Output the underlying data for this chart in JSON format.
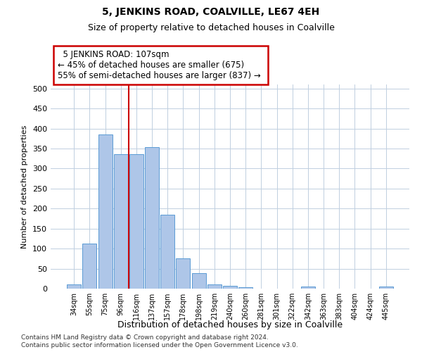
{
  "title": "5, JENKINS ROAD, COALVILLE, LE67 4EH",
  "subtitle": "Size of property relative to detached houses in Coalville",
  "xlabel": "Distribution of detached houses by size in Coalville",
  "ylabel": "Number of detached properties",
  "bar_labels": [
    "34sqm",
    "55sqm",
    "75sqm",
    "96sqm",
    "116sqm",
    "137sqm",
    "157sqm",
    "178sqm",
    "198sqm",
    "219sqm",
    "240sqm",
    "260sqm",
    "281sqm",
    "301sqm",
    "322sqm",
    "342sqm",
    "363sqm",
    "383sqm",
    "404sqm",
    "424sqm",
    "445sqm"
  ],
  "bar_values": [
    10,
    113,
    385,
    336,
    336,
    353,
    184,
    76,
    38,
    11,
    7,
    4,
    0,
    0,
    0,
    5,
    0,
    0,
    0,
    0,
    5
  ],
  "bar_color": "#aec6e8",
  "bar_edge_color": "#5b9bd5",
  "ylim": [
    0,
    510
  ],
  "yticks": [
    0,
    50,
    100,
    150,
    200,
    250,
    300,
    350,
    400,
    450,
    500
  ],
  "vline_x": 4.0,
  "vline_color": "#cc0000",
  "annotation_title": "5 JENKINS ROAD: 107sqm",
  "annotation_line1": "← 45% of detached houses are smaller (675)",
  "annotation_line2": "55% of semi-detached houses are larger (837) →",
  "annotation_box_color": "#ffffff",
  "annotation_box_edge": "#cc0000",
  "footer1": "Contains HM Land Registry data © Crown copyright and database right 2024.",
  "footer2": "Contains public sector information licensed under the Open Government Licence v3.0.",
  "bg_color": "#ffffff",
  "grid_color": "#c0cfe0",
  "title_fontsize": 10,
  "subtitle_fontsize": 9
}
